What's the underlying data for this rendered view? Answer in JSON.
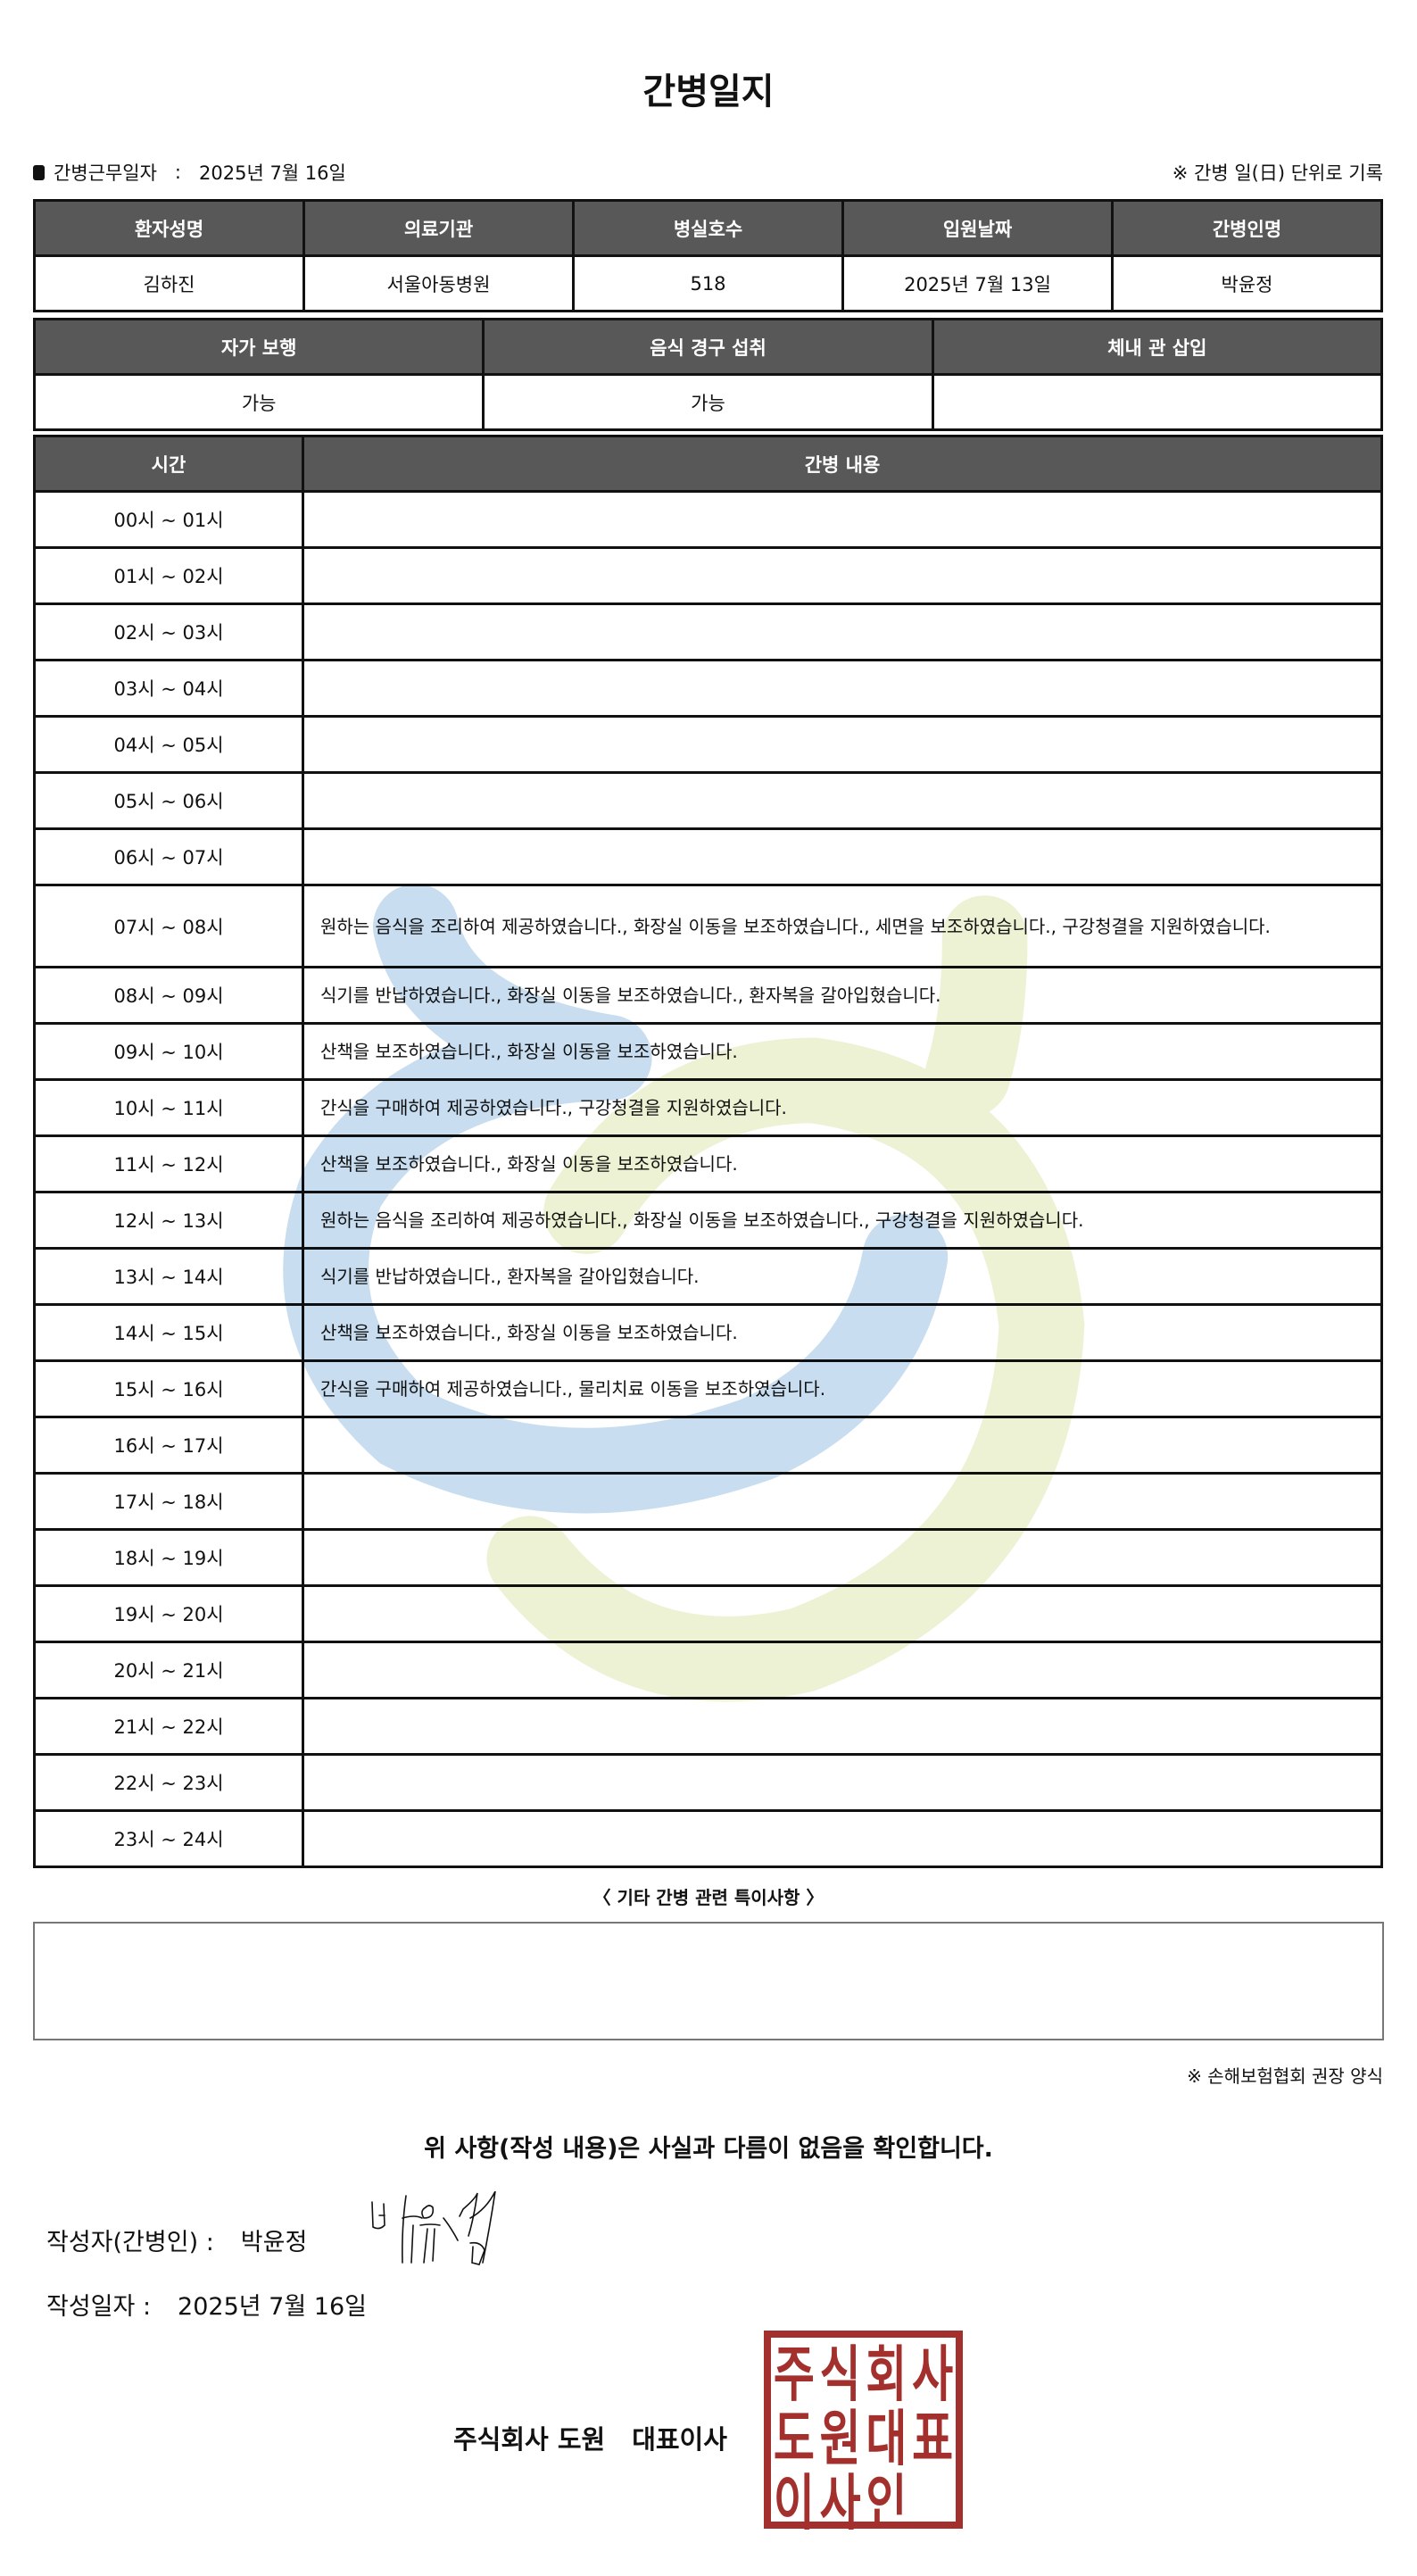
{
  "title": "간병일지",
  "info": {
    "work_date_label": "간병근무일자",
    "separator": ":",
    "work_date": "2025년 7월 16일",
    "note": "※ 간병 일(日) 단위로 기록"
  },
  "patient_table": {
    "headers": [
      "환자성명",
      "의료기관",
      "병실호수",
      "입원날짜",
      "간병인명"
    ],
    "values": [
      "김하진",
      "서울아동병원",
      "518",
      "2025년 7월 13일",
      "박윤정"
    ]
  },
  "status_table": {
    "headers": [
      "자가 보행",
      "음식 경구 섭취",
      "체내 관 삽입"
    ],
    "values": [
      "가능",
      "가능",
      ""
    ]
  },
  "care_table": {
    "headers": [
      "시간",
      "간병 내용"
    ],
    "rows": [
      {
        "time": "00시 ~ 01시",
        "content": ""
      },
      {
        "time": "01시 ~ 02시",
        "content": ""
      },
      {
        "time": "02시 ~ 03시",
        "content": ""
      },
      {
        "time": "03시 ~ 04시",
        "content": ""
      },
      {
        "time": "04시 ~ 05시",
        "content": ""
      },
      {
        "time": "05시 ~ 06시",
        "content": ""
      },
      {
        "time": "06시 ~ 07시",
        "content": ""
      },
      {
        "time": "07시 ~ 08시",
        "content": "원하는 음식을 조리하여 제공하였습니다., 화장실 이동을 보조하였습니다., 세면을 보조하였습니다., 구강청결을 지원하였습니다."
      },
      {
        "time": "08시 ~ 09시",
        "content": "식기를 반납하였습니다., 화장실 이동을 보조하였습니다., 환자복을 갈아입혔습니다."
      },
      {
        "time": "09시 ~ 10시",
        "content": "산책을 보조하였습니다., 화장실 이동을 보조하였습니다."
      },
      {
        "time": "10시 ~ 11시",
        "content": "간식을 구매하여 제공하였습니다., 구강청결을 지원하였습니다."
      },
      {
        "time": "11시 ~ 12시",
        "content": "산책을 보조하였습니다., 화장실 이동을 보조하였습니다."
      },
      {
        "time": "12시 ~ 13시",
        "content": "원하는 음식을 조리하여 제공하였습니다., 화장실 이동을 보조하였습니다., 구강청결을 지원하였습니다."
      },
      {
        "time": "13시 ~ 14시",
        "content": "식기를 반납하였습니다., 환자복을 갈아입혔습니다."
      },
      {
        "time": "14시 ~ 15시",
        "content": "산책을 보조하였습니다., 화장실 이동을 보조하였습니다."
      },
      {
        "time": "15시 ~ 16시",
        "content": "간식을 구매하여 제공하였습니다., 물리치료 이동을 보조하였습니다."
      },
      {
        "time": "16시 ~ 17시",
        "content": ""
      },
      {
        "time": "17시 ~ 18시",
        "content": ""
      },
      {
        "time": "18시 ~ 19시",
        "content": ""
      },
      {
        "time": "19시 ~ 20시",
        "content": ""
      },
      {
        "time": "20시 ~ 21시",
        "content": ""
      },
      {
        "time": "21시 ~ 22시",
        "content": ""
      },
      {
        "time": "22시 ~ 23시",
        "content": ""
      },
      {
        "time": "23시 ~ 24시",
        "content": ""
      }
    ]
  },
  "notes": {
    "title": "〈 기타 간병 관련 특이사항 〉",
    "content": ""
  },
  "footnote": "※ 손해보험협회 권장 양식",
  "confirmation": "위 사항(작성 내용)은 사실과 다름이 없음을 확인합니다.",
  "writer": {
    "label": "작성자(간병인) :",
    "name": "박윤정",
    "signature_text": "박윤정"
  },
  "written_date": {
    "label": "작성일자 :",
    "value": "2025년 7월 16일"
  },
  "company": {
    "name": "주식회사 도원",
    "title": "대표이사",
    "stamp_chars": [
      "주",
      "식",
      "회",
      "사",
      "도",
      "원",
      "대",
      "표",
      "이",
      "사",
      "인",
      ""
    ],
    "stamp_color": "#a3302c"
  },
  "colors": {
    "header_bg": "#585858",
    "watermark_blue": "#c8ddef",
    "watermark_green": "#edf2d4"
  }
}
